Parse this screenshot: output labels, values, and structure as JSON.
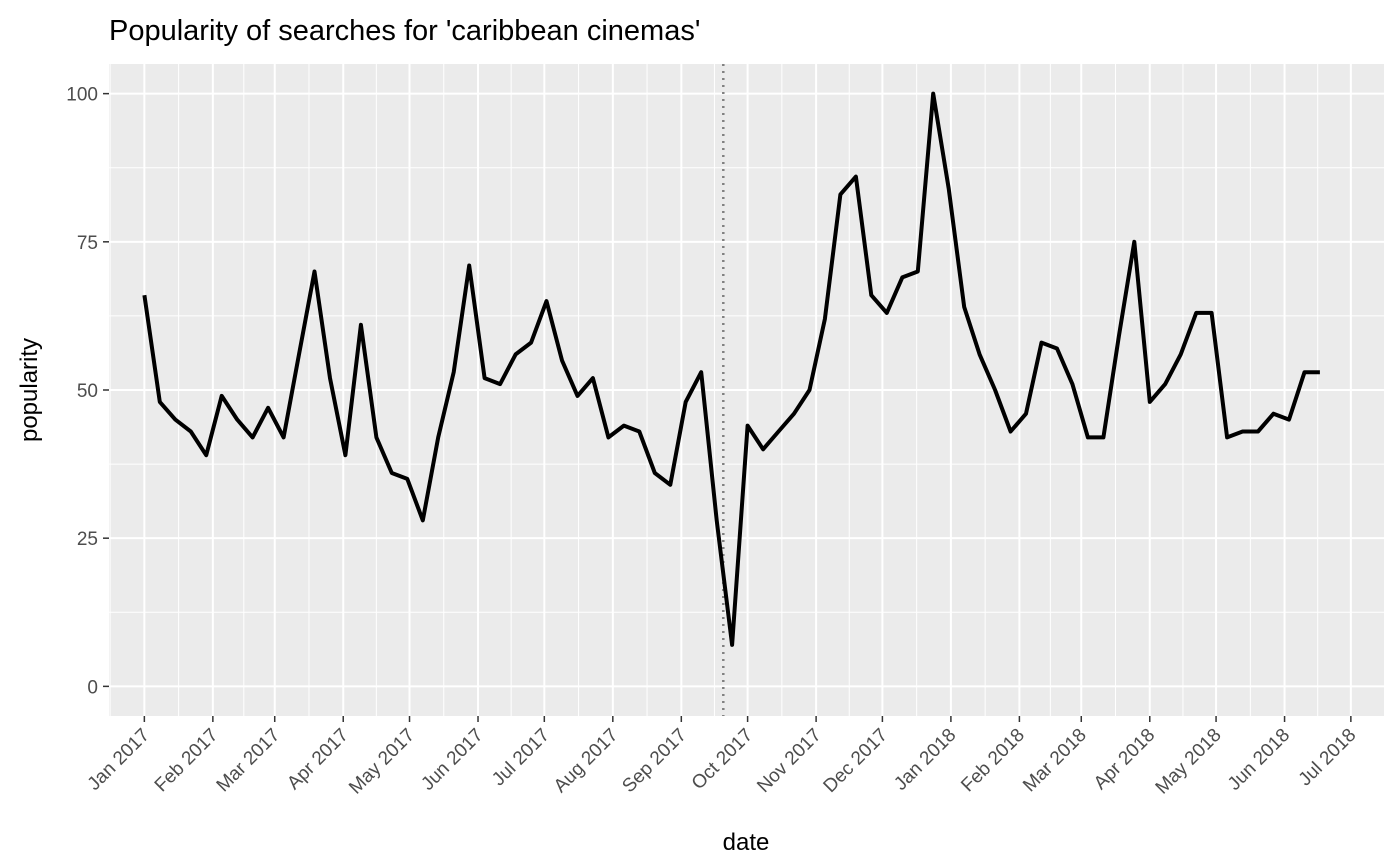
{
  "chart_data": {
    "type": "line",
    "title": "Popularity of searches for 'caribbean cinemas'",
    "xlabel": "date",
    "ylabel": "popularity",
    "x_axis_type": "date",
    "xlim": [
      "2016-12-16",
      "2018-07-16"
    ],
    "ylim": [
      -5,
      105
    ],
    "yticks": [
      0,
      25,
      50,
      75,
      100
    ],
    "xticks": [
      {
        "date": "2017-01-01",
        "label": "Jan 2017"
      },
      {
        "date": "2017-02-01",
        "label": "Feb 2017"
      },
      {
        "date": "2017-03-01",
        "label": "Mar 2017"
      },
      {
        "date": "2017-04-01",
        "label": "Apr 2017"
      },
      {
        "date": "2017-05-01",
        "label": "May 2017"
      },
      {
        "date": "2017-06-01",
        "label": "Jun 2017"
      },
      {
        "date": "2017-07-01",
        "label": "Jul 2017"
      },
      {
        "date": "2017-08-01",
        "label": "Aug 2017"
      },
      {
        "date": "2017-09-01",
        "label": "Sep 2017"
      },
      {
        "date": "2017-10-01",
        "label": "Oct 2017"
      },
      {
        "date": "2017-11-01",
        "label": "Nov 2017"
      },
      {
        "date": "2017-12-01",
        "label": "Dec 2017"
      },
      {
        "date": "2018-01-01",
        "label": "Jan 2018"
      },
      {
        "date": "2018-02-01",
        "label": "Feb 2018"
      },
      {
        "date": "2018-03-01",
        "label": "Mar 2018"
      },
      {
        "date": "2018-04-01",
        "label": "Apr 2018"
      },
      {
        "date": "2018-05-01",
        "label": "May 2018"
      },
      {
        "date": "2018-06-01",
        "label": "Jun 2018"
      },
      {
        "date": "2018-07-01",
        "label": "Jul 2018"
      }
    ],
    "grid": true,
    "reference_line": {
      "date": "2017-09-20",
      "style": "dotted",
      "color": "#808080"
    },
    "line_color": "#000000",
    "panel_background": "#ebebeb",
    "grid_color": "#ffffff",
    "series": [
      {
        "x": [
          "2017-01-01",
          "2017-01-08",
          "2017-01-15",
          "2017-01-22",
          "2017-01-29",
          "2017-02-05",
          "2017-02-12",
          "2017-02-19",
          "2017-02-26",
          "2017-03-05",
          "2017-03-12",
          "2017-03-19",
          "2017-03-26",
          "2017-04-02",
          "2017-04-09",
          "2017-04-16",
          "2017-04-23",
          "2017-04-30",
          "2017-05-07",
          "2017-05-14",
          "2017-05-21",
          "2017-05-28",
          "2017-06-04",
          "2017-06-11",
          "2017-06-18",
          "2017-06-25",
          "2017-07-02",
          "2017-07-09",
          "2017-07-16",
          "2017-07-23",
          "2017-07-30",
          "2017-08-06",
          "2017-08-13",
          "2017-08-20",
          "2017-08-27",
          "2017-09-03",
          "2017-09-10",
          "2017-09-17",
          "2017-09-24",
          "2017-10-01",
          "2017-10-08",
          "2017-10-15",
          "2017-10-22",
          "2017-10-29",
          "2017-11-05",
          "2017-11-12",
          "2017-11-19",
          "2017-11-26",
          "2017-12-03",
          "2017-12-10",
          "2017-12-17",
          "2017-12-24",
          "2017-12-31",
          "2018-01-07",
          "2018-01-14",
          "2018-01-21",
          "2018-01-28",
          "2018-02-04",
          "2018-02-11",
          "2018-02-18",
          "2018-02-25",
          "2018-03-04",
          "2018-03-11",
          "2018-03-18",
          "2018-03-25",
          "2018-04-01",
          "2018-04-08",
          "2018-04-15",
          "2018-04-22",
          "2018-04-29",
          "2018-05-06",
          "2018-05-13",
          "2018-05-20",
          "2018-05-27",
          "2018-06-03",
          "2018-06-10",
          "2018-06-17"
        ],
        "y": [
          66,
          48,
          45,
          43,
          39,
          49,
          45,
          42,
          47,
          42,
          56,
          70,
          52,
          39,
          61,
          42,
          36,
          35,
          28,
          42,
          53,
          71,
          52,
          51,
          56,
          58,
          65,
          55,
          49,
          52,
          42,
          44,
          43,
          36,
          34,
          48,
          53,
          28,
          7,
          44,
          40,
          43,
          46,
          50,
          62,
          83,
          86,
          66,
          63,
          69,
          70,
          100,
          84,
          64,
          56,
          50,
          43,
          46,
          58,
          57,
          51,
          42,
          42,
          59,
          75,
          48,
          51,
          56,
          63,
          63,
          42,
          43,
          43,
          46,
          45,
          53,
          53
        ]
      }
    ]
  }
}
